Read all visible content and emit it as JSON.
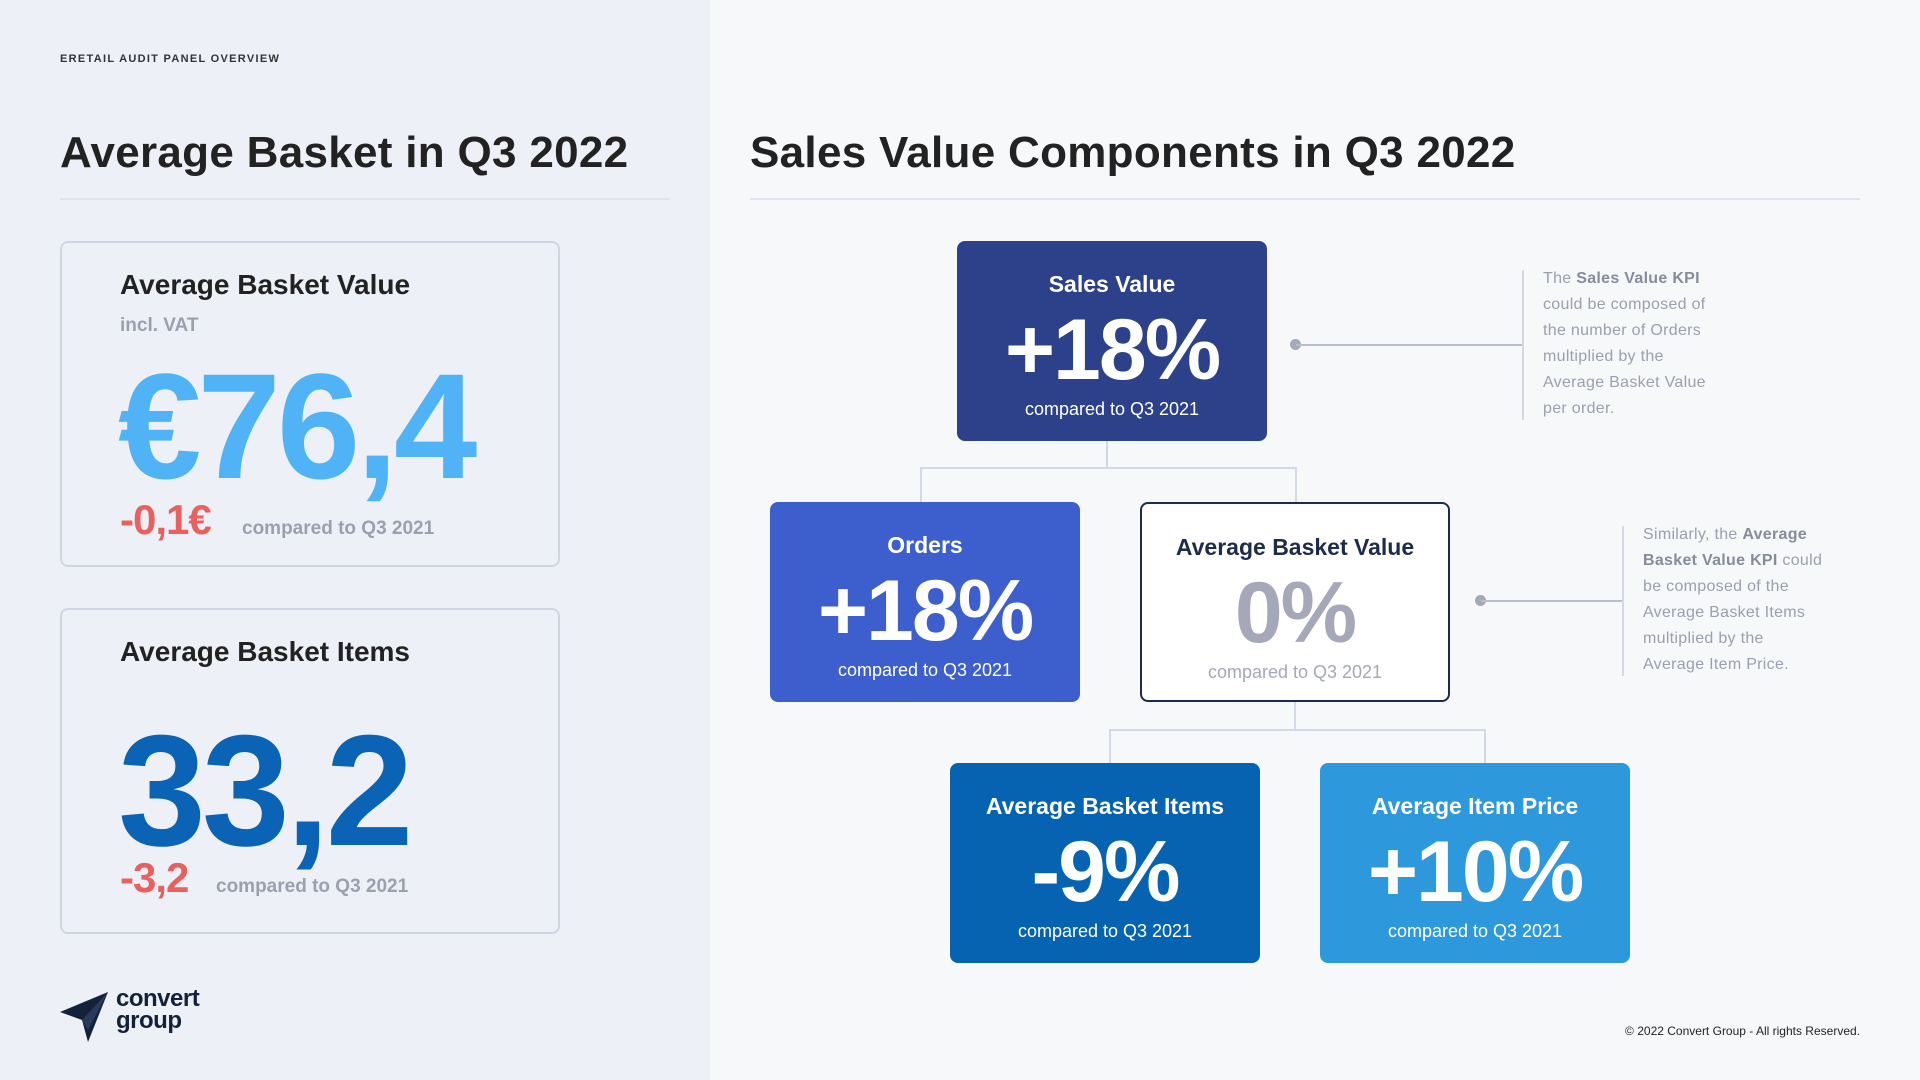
{
  "overline": "ERETAIL AUDIT PANEL OVERVIEW",
  "left": {
    "title": "Average Basket in Q3 2022",
    "cards": [
      {
        "title": "Average Basket Value",
        "subtitle": "incl. VAT",
        "value": "€76,4",
        "delta": "-0,1€",
        "note": "compared to Q3 2021"
      },
      {
        "title": "Average Basket Items",
        "value": "33,2",
        "delta": "-3,2",
        "note": "compared to Q3 2021"
      }
    ]
  },
  "right": {
    "title": "Sales Value Components in Q3 2022",
    "nodes": {
      "sales_value": {
        "title": "Sales Value",
        "value": "+18%",
        "note": "compared to Q3 2021"
      },
      "orders": {
        "title": "Orders",
        "value": "+18%",
        "note": "compared to Q3 2021"
      },
      "avg_basket_value": {
        "title": "Average Basket Value",
        "value": "0%",
        "note": "compared to Q3 2021"
      },
      "avg_basket_items": {
        "title": "Average Basket Items",
        "value": "-9%",
        "note": "compared to Q3 2021"
      },
      "avg_item_price": {
        "title": "Average Item Price",
        "value": "+10%",
        "note": "compared to Q3 2021"
      }
    },
    "explanations": [
      {
        "lines": [
          {
            "pre": "The ",
            "bold": "Sales Value KPI",
            "post": ""
          },
          {
            "pre": "could be composed of",
            "bold": "",
            "post": ""
          },
          {
            "pre": "the number of Orders",
            "bold": "",
            "post": ""
          },
          {
            "pre": "multiplied by the",
            "bold": "",
            "post": ""
          },
          {
            "pre": "Average Basket Value",
            "bold": "",
            "post": ""
          },
          {
            "pre": "per order.",
            "bold": "",
            "post": ""
          }
        ]
      },
      {
        "lines": [
          {
            "pre": "Similarly, the ",
            "bold": "Average",
            "post": ""
          },
          {
            "pre": "",
            "bold": "Basket Value KPI",
            "post": " could"
          },
          {
            "pre": "be composed of the",
            "bold": "",
            "post": ""
          },
          {
            "pre": "Average Basket Items",
            "bold": "",
            "post": ""
          },
          {
            "pre": "multiplied by the",
            "bold": "",
            "post": ""
          },
          {
            "pre": "Average Item Price.",
            "bold": "",
            "post": ""
          }
        ]
      }
    ]
  },
  "logo": {
    "line1": "convert",
    "line2": "group"
  },
  "copyright": "© 2022 Convert Group - All rights Reserved.",
  "colors": {
    "sales_value": "#2c4189",
    "orders": "#3d5fcd",
    "avg_basket_items": "#0563b1",
    "avg_item_price": "#2e98dc",
    "big_value_light": "#4fb3f6",
    "big_value_dark": "#0a63b5",
    "negative": "#e8615f"
  }
}
